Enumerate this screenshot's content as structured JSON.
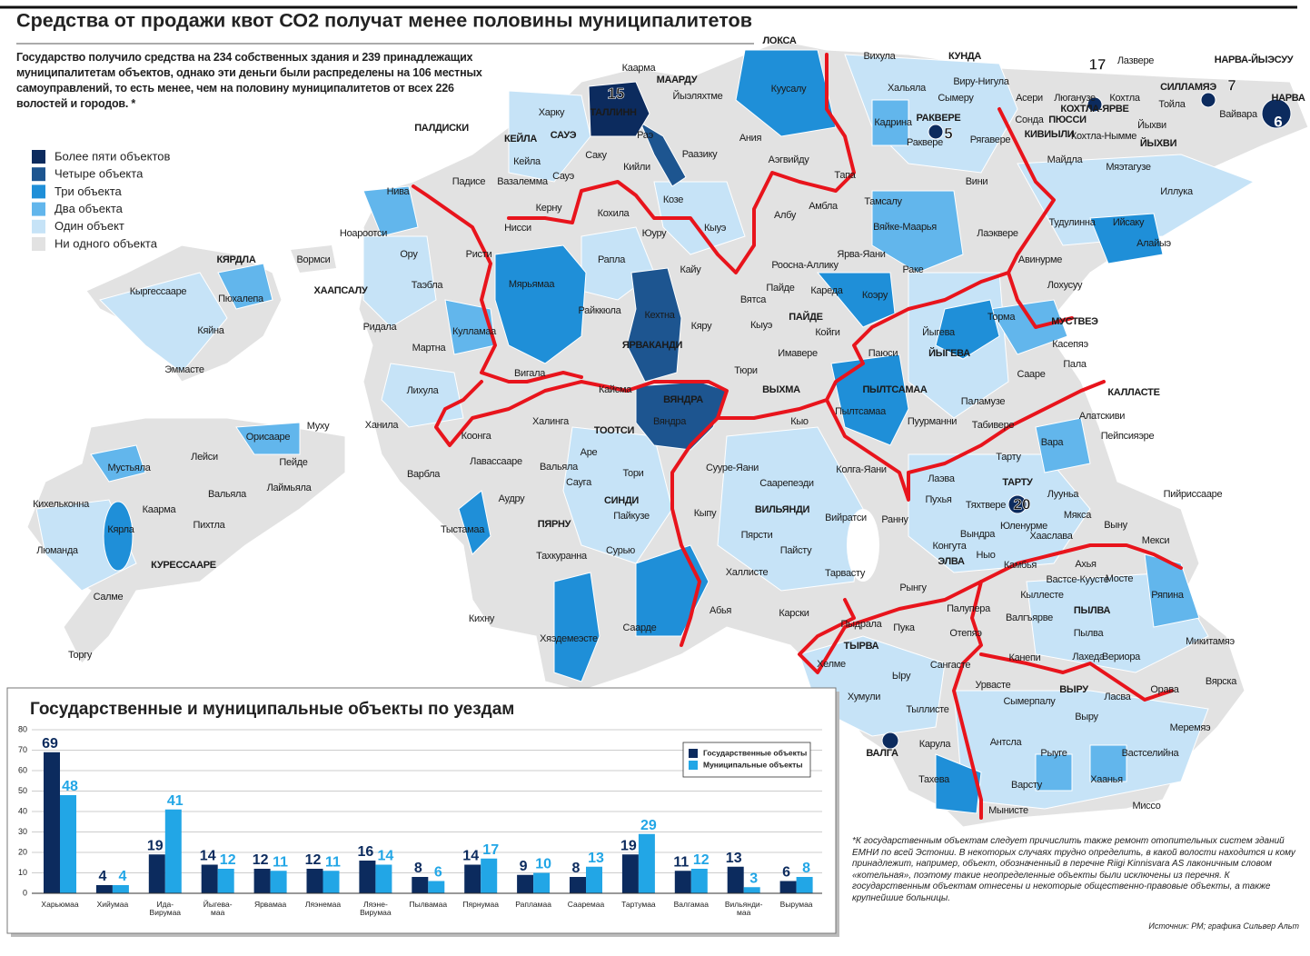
{
  "header": {
    "title": "Средства от продажи квот СО2 получат менее половины муниципалитетов"
  },
  "intro": "Государство получило средства на 234 собственных здания и 239 принадлежащих муниципалитетам объектов, однако эти деньги были распределены на 106 местных самоуправлений, то есть менее, чем на половину муниципалитетов от всех 226 волостей и городов. *",
  "legend": {
    "items": [
      {
        "label": "Более пяти объектов",
        "color": "#0c2b5e"
      },
      {
        "label": "Четыре объекта",
        "color": "#1d5590"
      },
      {
        "label": "Три объекта",
        "color": "#1f8fd8"
      },
      {
        "label": "Два объекта",
        "color": "#62b6ec"
      },
      {
        "label": "Один объект",
        "color": "#c6e3f7"
      },
      {
        "label": "Ни одного объекта",
        "color": "#e2e2e2"
      }
    ]
  },
  "map": {
    "labels": [
      "ЛОКСА",
      "Каарма",
      "МААРДУ",
      "Йыэляхтме",
      "Куусалу",
      "Вихула",
      "КУНДА",
      "Хальяла",
      "Виру-Нигула",
      "Сымеру",
      "Асери",
      "Люганузе",
      "Кохтла",
      "КОХТЛА-ЯРВЕ",
      "Лазвере",
      "НАРВА-ЙЫЭСУУ",
      "СИЛЛАМЯЭ",
      "НАРВА",
      "Тойла",
      "Вайвара",
      "Йыхви",
      "ЙЫХВИ",
      "Кохтла-Нымме",
      "Сонда",
      "ПЮССИ",
      "КИВИЫЛИ",
      "Кадрина",
      "РАКВЕРЕ",
      "Раквере",
      "Рягавере",
      "Майдла",
      "Мяэтагузе",
      "Иллука",
      "Вини",
      "Тапа",
      "Аэгвийду",
      "Ания",
      "Тамсалу",
      "Вяйке-Маарья",
      "Лаэквере",
      "Тудулинна",
      "Ийсаку",
      "Алайыэ",
      "Авинурме",
      "Лохусуу",
      "Раке",
      "Ярва-Яани",
      "Амбла",
      "Албу",
      "Козе",
      "Кыуэ",
      "ТАЛЛИНН",
      "Харку",
      "ПАЛДИСКИ",
      "КЕЙЛА",
      "САУЭ",
      "Раэ",
      "Кейла",
      "Саку",
      "Кийли",
      "Раазику",
      "Сауэ",
      "Падисе",
      "Вазалемма",
      "Нива",
      "Керну",
      "Кохила",
      "Юуру",
      "Нисси",
      "Ноароотси",
      "Ору",
      "Ристи",
      "Вормси",
      "Рапла",
      "Кайу",
      "ХААПСАЛУ",
      "Таэбла",
      "Мярьямаа",
      "Райккюла",
      "Кехтна",
      "Кяру",
      "ЯРВАКАНДИ",
      "Ридала",
      "Кулламаа",
      "Мартна",
      "Вигала",
      "Лихула",
      "Кайсма",
      "ВЯНДРА",
      "Вяндра",
      "Ханила",
      "Халинга",
      "ТООТСИ",
      "Коонга",
      "Аре",
      "Лавассааре",
      "Вальяла",
      "Тори",
      "Варбла",
      "Сауга",
      "Аудру",
      "СИНДИ",
      "Пайкузе",
      "ПЯРНУ",
      "Тыстамаа",
      "Сурью",
      "Тахкуранна",
      "Кихну",
      "Хяэдемеэсте",
      "Саарде",
      "Абья",
      "Халлисте",
      "Кыпу",
      "Пярсти",
      "Пайсту",
      "ВИЛЬЯНДИ",
      "Саарепеэди",
      "Сууре-Яани",
      "Вийратси",
      "Тарвасту",
      "Карски",
      "Колга-Яани",
      "Кыо",
      "ВЫХМА",
      "Тюри",
      "Имавере",
      "Койги",
      "ПАЙДЕ",
      "Пайде",
      "Кареда",
      "Роосна-Аллику",
      "Вятса",
      "Кыуэ",
      "Коэру",
      "Паюси",
      "ЙЫГЕВА",
      "Йыгева",
      "Торма",
      "МУСТВЕЭ",
      "Касепяэ",
      "Пала",
      "Сааре",
      "ПЫЛТСАМАА",
      "Пылтсамаа",
      "Паламузе",
      "Пуурманни",
      "Табивере",
      "КАЛЛАСТЕ",
      "Алатскиви",
      "Пейпсияэре",
      "Вара",
      "Тарту",
      "Ранну",
      "Лаэва",
      "ТАРТУ",
      "Пухья",
      "Тяхтвере",
      "Лууньа",
      "Пийриссааре",
      "Юленурме",
      "Мякса",
      "Хааслава",
      "Выну",
      "Вындра",
      "Конгута",
      "Ныо",
      "ЭЛВА",
      "Камбья",
      "Мекси",
      "Ахья",
      "Вастсе-Куусте",
      "Мосте",
      "Кыллесте",
      "Ряпина",
      "Рынгу",
      "Палупера",
      "ПЫЛВА",
      "Валгъярве",
      "Пылва",
      "Пыдрала",
      "Пука",
      "Отепяэ",
      "Микитамяэ",
      "ТЫРВА",
      "Хелме",
      "Сангасте",
      "Канепи",
      "Лахеда",
      "Вериора",
      "Ыру",
      "Урвасте",
      "Хумули",
      "Сымерпалу",
      "ВЫРУ",
      "Ласва",
      "Орава",
      "Вярска",
      "Тыллисте",
      "Выру",
      "Меремяэ",
      "Антсла",
      "Карула",
      "ВАЛГА",
      "Рыуге",
      "Вастселийна",
      "Тахева",
      "Хаанья",
      "Варсту",
      "Мынисте",
      "Миссо",
      "КЯРДЛА",
      "Кыргессааре",
      "Пюхалепа",
      "Кяйна",
      "Эммасте",
      "Муху",
      "Орисааре",
      "Лейси",
      "Пейде",
      "Мустьяла",
      "Лаймьяла",
      "Вальяла",
      "Кихельконна",
      "Каарма",
      "Пихтла",
      "Кярла",
      "Люманда",
      "КУРЕССААРЕ",
      "Салме",
      "Торгу"
    ],
    "badges": [
      15,
      5,
      17,
      7,
      6,
      20
    ]
  },
  "chart_data": {
    "type": "bar",
    "title": "Государственные и муниципальные объекты по уездам",
    "categories": [
      "Харьюмаа",
      "Хийумаа",
      "Ида-\nВирумаа",
      "Йыгева-\nмаа",
      "Ярвамаа",
      "Ляэнемаа",
      "Ляэне-\nВирумаа",
      "Пылвамаа",
      "Пярнумаа",
      "Рапламаа",
      "Сааремаа",
      "Тартумаа",
      "Валгамаа",
      "Вильянди-\nмаа",
      "Вырумаа"
    ],
    "series": [
      {
        "name": "Государственные объекты",
        "color": "#0c2b5e",
        "values": [
          69,
          4,
          19,
          14,
          12,
          12,
          16,
          8,
          14,
          9,
          8,
          19,
          11,
          13,
          6
        ]
      },
      {
        "name": "Муниципальные объекты",
        "color": "#22a6e6",
        "values": [
          48,
          4,
          41,
          12,
          11,
          11,
          14,
          6,
          17,
          10,
          13,
          29,
          12,
          3,
          8
        ]
      }
    ],
    "ylim": [
      0,
      80
    ],
    "yticks": [
      0,
      10,
      20,
      30,
      40,
      50,
      60,
      70,
      80
    ],
    "grid": true,
    "legend": "top-right"
  },
  "footnote": "*К государственным объектам следует причислить также ремонт отопительных систем зданий ЕМНИ по всей Эстонии. В некоторых случаях трудно определить, в какой волости находится и кому принадлежит, например, объект, обозначенный в перечне Riigi Kinnisvara AS лаконичным словом «котельная», поэтому такие неопределенные объекты были исключены из перечня. К государственным объектам отнесены и некоторые общественно-правовые объекты, а также крупнейшие больницы.",
  "source": "Источник: РМ; графика Сильвер Альт"
}
